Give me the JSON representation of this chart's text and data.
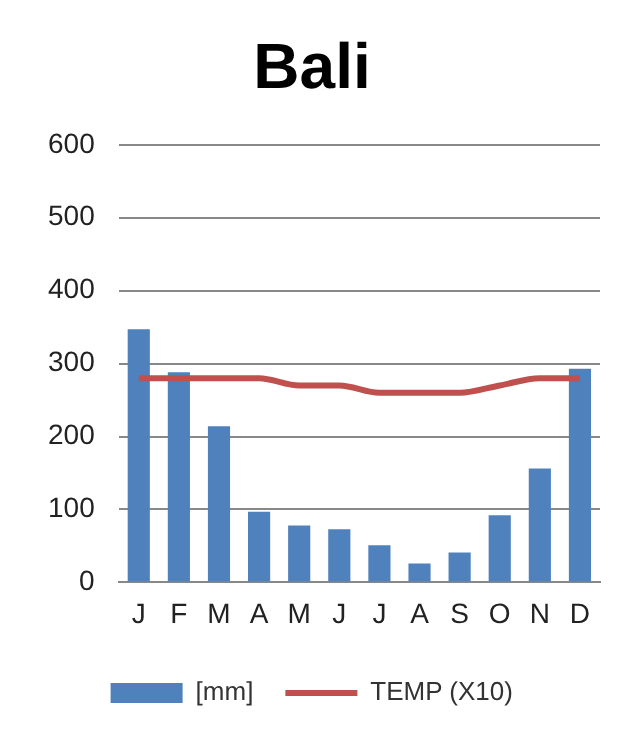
{
  "chart_data": {
    "type": "bar",
    "title": "Bali",
    "categories": [
      "J",
      "F",
      "M",
      "A",
      "M",
      "J",
      "J",
      "A",
      "S",
      "O",
      "N",
      "D"
    ],
    "series": [
      {
        "name": "[mm]",
        "color": "#4f81bd",
        "values": [
          347,
          288,
          214,
          97,
          78,
          73,
          51,
          26,
          41,
          92,
          156,
          293
        ]
      },
      {
        "name": "TEMP (X10)",
        "type": "line",
        "color": "#c0504d",
        "values": [
          280,
          280,
          280,
          280,
          270,
          270,
          260,
          260,
          260,
          270,
          280,
          280
        ]
      }
    ],
    "ylim": [
      0,
      600
    ],
    "yticks": [
      0,
      100,
      200,
      300,
      400,
      500,
      600
    ],
    "grid": "y",
    "legend": "bottom",
    "marker": "none"
  }
}
